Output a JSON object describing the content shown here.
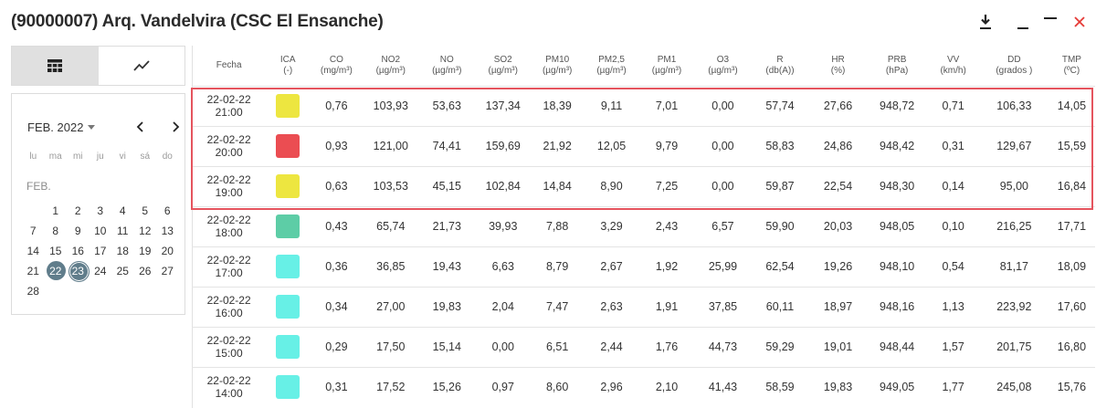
{
  "title": "(90000007) Arq. Vandelvira (CSC El Ensanche)",
  "colors": {
    "highlight": "#e5545e",
    "selected_day": "#607d8b",
    "close": "#e53935"
  },
  "header_icons": [
    "download-icon",
    "minimize-icon",
    "maximize-icon",
    "close-icon"
  ],
  "view_toggle": {
    "table_icon": "table-icon",
    "chart_icon": "line-chart-icon",
    "active": "table"
  },
  "calendar": {
    "month_label": "FEB. 2022",
    "section_label": "FEB.",
    "weekdays": [
      "lu",
      "ma",
      "mi",
      "ju",
      "vi",
      "sá",
      "do"
    ],
    "leading_blanks": 1,
    "days": [
      "1",
      "2",
      "3",
      "4",
      "5",
      "6",
      "7",
      "8",
      "9",
      "10",
      "11",
      "12",
      "13",
      "14",
      "15",
      "16",
      "17",
      "18",
      "19",
      "20",
      "21",
      "22",
      "23",
      "24",
      "25",
      "26",
      "27",
      "28"
    ],
    "selected": [
      "22",
      "23"
    ],
    "today": "23"
  },
  "table": {
    "headers": [
      {
        "name": "Fecha",
        "unit": ""
      },
      {
        "name": "ICA",
        "unit": "(-)"
      },
      {
        "name": "CO",
        "unit": "(mg/m³)"
      },
      {
        "name": "NO2",
        "unit": "(µg/m³)"
      },
      {
        "name": "NO",
        "unit": "(µg/m³)"
      },
      {
        "name": "SO2",
        "unit": "(µg/m³)"
      },
      {
        "name": "PM10",
        "unit": "(µg/m³)"
      },
      {
        "name": "PM2,5",
        "unit": "(µg/m³)"
      },
      {
        "name": "PM1",
        "unit": "(µg/m³)"
      },
      {
        "name": "O3",
        "unit": "(µg/m³)"
      },
      {
        "name": "R",
        "unit": "(db(A))"
      },
      {
        "name": "HR",
        "unit": "(%)"
      },
      {
        "name": "PRB",
        "unit": "(hPa)"
      },
      {
        "name": "VV",
        "unit": "(km/h)"
      },
      {
        "name": "DD",
        "unit": "(grados )"
      },
      {
        "name": "TMP",
        "unit": "(ºC)"
      }
    ],
    "rows": [
      {
        "date": "22-02-22",
        "time": "21:00",
        "ica_color": "#ede640",
        "values": [
          "0,76",
          "103,93",
          "53,63",
          "137,34",
          "18,39",
          "9,11",
          "7,01",
          "0,00",
          "57,74",
          "27,66",
          "948,72",
          "0,71",
          "106,33",
          "14,05"
        ]
      },
      {
        "date": "22-02-22",
        "time": "20:00",
        "ica_color": "#eb4d52",
        "values": [
          "0,93",
          "121,00",
          "74,41",
          "159,69",
          "21,92",
          "12,05",
          "9,79",
          "0,00",
          "58,83",
          "24,86",
          "948,42",
          "0,31",
          "129,67",
          "15,59"
        ]
      },
      {
        "date": "22-02-22",
        "time": "19:00",
        "ica_color": "#ede640",
        "values": [
          "0,63",
          "103,53",
          "45,15",
          "102,84",
          "14,84",
          "8,90",
          "7,25",
          "0,00",
          "59,87",
          "22,54",
          "948,30",
          "0,14",
          "95,00",
          "16,84"
        ]
      },
      {
        "date": "22-02-22",
        "time": "18:00",
        "ica_color": "#5dcda6",
        "values": [
          "0,43",
          "65,74",
          "21,73",
          "39,93",
          "7,88",
          "3,29",
          "2,43",
          "6,57",
          "59,90",
          "20,03",
          "948,05",
          "0,10",
          "216,25",
          "17,71"
        ]
      },
      {
        "date": "22-02-22",
        "time": "17:00",
        "ica_color": "#67f0e6",
        "values": [
          "0,36",
          "36,85",
          "19,43",
          "6,63",
          "8,79",
          "2,67",
          "1,92",
          "25,99",
          "62,54",
          "19,26",
          "948,10",
          "0,54",
          "81,17",
          "18,09"
        ]
      },
      {
        "date": "22-02-22",
        "time": "16:00",
        "ica_color": "#67f0e6",
        "values": [
          "0,34",
          "27,00",
          "19,83",
          "2,04",
          "7,47",
          "2,63",
          "1,91",
          "37,85",
          "60,11",
          "18,97",
          "948,16",
          "1,13",
          "223,92",
          "17,60"
        ]
      },
      {
        "date": "22-02-22",
        "time": "15:00",
        "ica_color": "#67f0e6",
        "values": [
          "0,29",
          "17,50",
          "15,14",
          "0,00",
          "6,51",
          "2,44",
          "1,76",
          "44,73",
          "59,29",
          "19,01",
          "948,44",
          "1,57",
          "201,75",
          "16,80"
        ]
      },
      {
        "date": "22-02-22",
        "time": "14:00",
        "ica_color": "#67f0e6",
        "values": [
          "0,31",
          "17,52",
          "15,26",
          "0,97",
          "8,60",
          "2,96",
          "2,10",
          "41,43",
          "58,59",
          "19,83",
          "949,05",
          "1,77",
          "245,08",
          "15,76"
        ]
      }
    ]
  }
}
